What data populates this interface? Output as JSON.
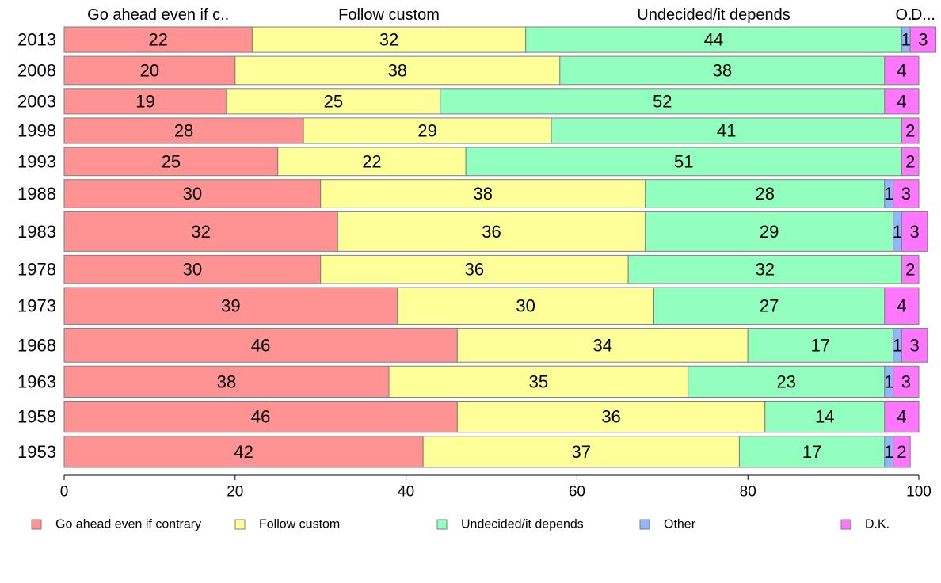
{
  "chart_data": {
    "type": "bar",
    "orientation": "horizontal",
    "stacked": true,
    "categories": [
      "2013",
      "2008",
      "2003",
      "1998",
      "1993",
      "1988",
      "1983",
      "1978",
      "1973",
      "1968",
      "1963",
      "1958",
      "1953"
    ],
    "series": [
      {
        "name": "Go ahead even if contrary",
        "top_label": "Go ahead even if c..",
        "color": "#FF9292",
        "values": [
          22,
          20,
          19,
          28,
          25,
          30,
          32,
          30,
          39,
          46,
          38,
          46,
          42
        ]
      },
      {
        "name": "Follow custom",
        "top_label": "Follow custom",
        "color": "#FFFF9A",
        "values": [
          32,
          38,
          25,
          29,
          22,
          38,
          36,
          36,
          30,
          34,
          35,
          36,
          37
        ]
      },
      {
        "name": "Undecided/it depends",
        "top_label": "Undecided/it depends",
        "color": "#92FFBE",
        "values": [
          44,
          38,
          52,
          41,
          51,
          28,
          29,
          32,
          27,
          17,
          23,
          14,
          17
        ]
      },
      {
        "name": "Other",
        "top_label": "O..",
        "color": "#92B5FF",
        "values": [
          1,
          0,
          0,
          0,
          0,
          1,
          1,
          0,
          0,
          1,
          1,
          0,
          1
        ]
      },
      {
        "name": "D.K.",
        "top_label": "D...",
        "color": "#FF77FF",
        "values": [
          3,
          4,
          4,
          2,
          2,
          3,
          3,
          2,
          4,
          3,
          3,
          4,
          2
        ]
      }
    ],
    "value_labels": {
      "Go ahead even if contrary": [
        "22",
        "20",
        "19",
        "28",
        "25",
        "30",
        "32",
        "30",
        "39",
        "46",
        "38",
        "46",
        "42"
      ],
      "Follow custom": [
        "32",
        "38",
        "25",
        "29",
        "22",
        "38",
        "36",
        "36",
        "30",
        "34",
        "35",
        "36",
        "37"
      ],
      "Undecided/it depends": [
        "44",
        "38",
        "52",
        "41",
        "51",
        "28",
        "29",
        "32",
        "27",
        "17",
        "23",
        "14",
        "17"
      ],
      "Other": [
        "1",
        "",
        "",
        "",
        "",
        "1",
        "1",
        "",
        "",
        "1",
        "1",
        "",
        "1"
      ],
      "D.K.": [
        "3",
        "4",
        "4",
        "2",
        "2",
        "3",
        "3",
        "2",
        "4",
        "3",
        "3",
        "4",
        "2"
      ]
    },
    "bar_weights": [
      9,
      10,
      9,
      9,
      10,
      10,
      14,
      10,
      13,
      12,
      11,
      11,
      11
    ],
    "xlim": [
      0,
      100
    ],
    "xticks": [
      "0",
      "20",
      "40",
      "60",
      "80",
      "100"
    ],
    "title": "",
    "xlabel": "",
    "ylabel": "",
    "grid": false,
    "legend_position": "bottom"
  }
}
